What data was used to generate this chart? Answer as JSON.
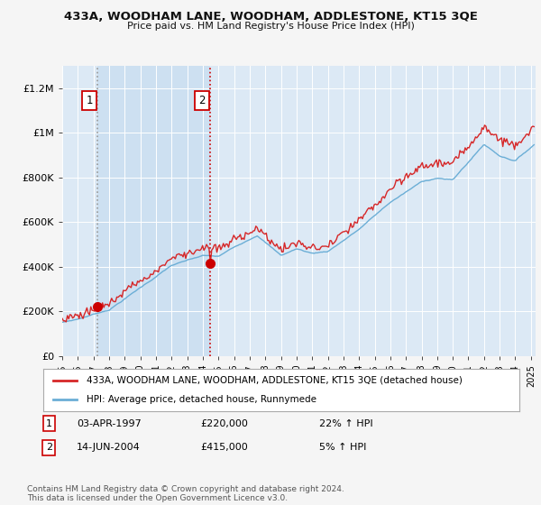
{
  "title": "433A, WOODHAM LANE, WOODHAM, ADDLESTONE, KT15 3QE",
  "subtitle": "Price paid vs. HM Land Registry's House Price Index (HPI)",
  "fig_bg_color": "#f5f5f5",
  "plot_bg_color": "#dce9f5",
  "shade_bg_color": "#c8ddf0",
  "grid_color": "#b8cfe0",
  "sale1_year": 1997.25,
  "sale1_price": 220000,
  "sale2_year": 2004.45,
  "sale2_price": 415000,
  "sale1_date": "03-APR-1997",
  "sale1_pct": "22%",
  "sale2_date": "14-JUN-2004",
  "sale2_pct": "5%",
  "hpi_line_color": "#6baed6",
  "price_line_color": "#d62728",
  "vline1_color": "#888888",
  "vline2_color": "#cc0000",
  "sale_dot_color": "#cc0000",
  "ylim": [
    0,
    1300000
  ],
  "xlim_start": 1995.0,
  "xlim_end": 2025.3,
  "legend_label_price": "433A, WOODHAM LANE, WOODHAM, ADDLESTONE, KT15 3QE (detached house)",
  "legend_label_hpi": "HPI: Average price, detached house, Runnymede",
  "footer": "Contains HM Land Registry data © Crown copyright and database right 2024.\nThis data is licensed under the Open Government Licence v3.0.",
  "yticks": [
    0,
    200000,
    400000,
    600000,
    800000,
    1000000,
    1200000
  ],
  "ytick_labels": [
    "£0",
    "£200K",
    "£400K",
    "£600K",
    "£800K",
    "£1M",
    "£1.2M"
  ],
  "xticks": [
    1995,
    1996,
    1997,
    1998,
    1999,
    2000,
    2001,
    2002,
    2003,
    2004,
    2005,
    2006,
    2007,
    2008,
    2009,
    2010,
    2011,
    2012,
    2013,
    2014,
    2015,
    2016,
    2017,
    2018,
    2019,
    2020,
    2021,
    2022,
    2023,
    2024,
    2025
  ]
}
